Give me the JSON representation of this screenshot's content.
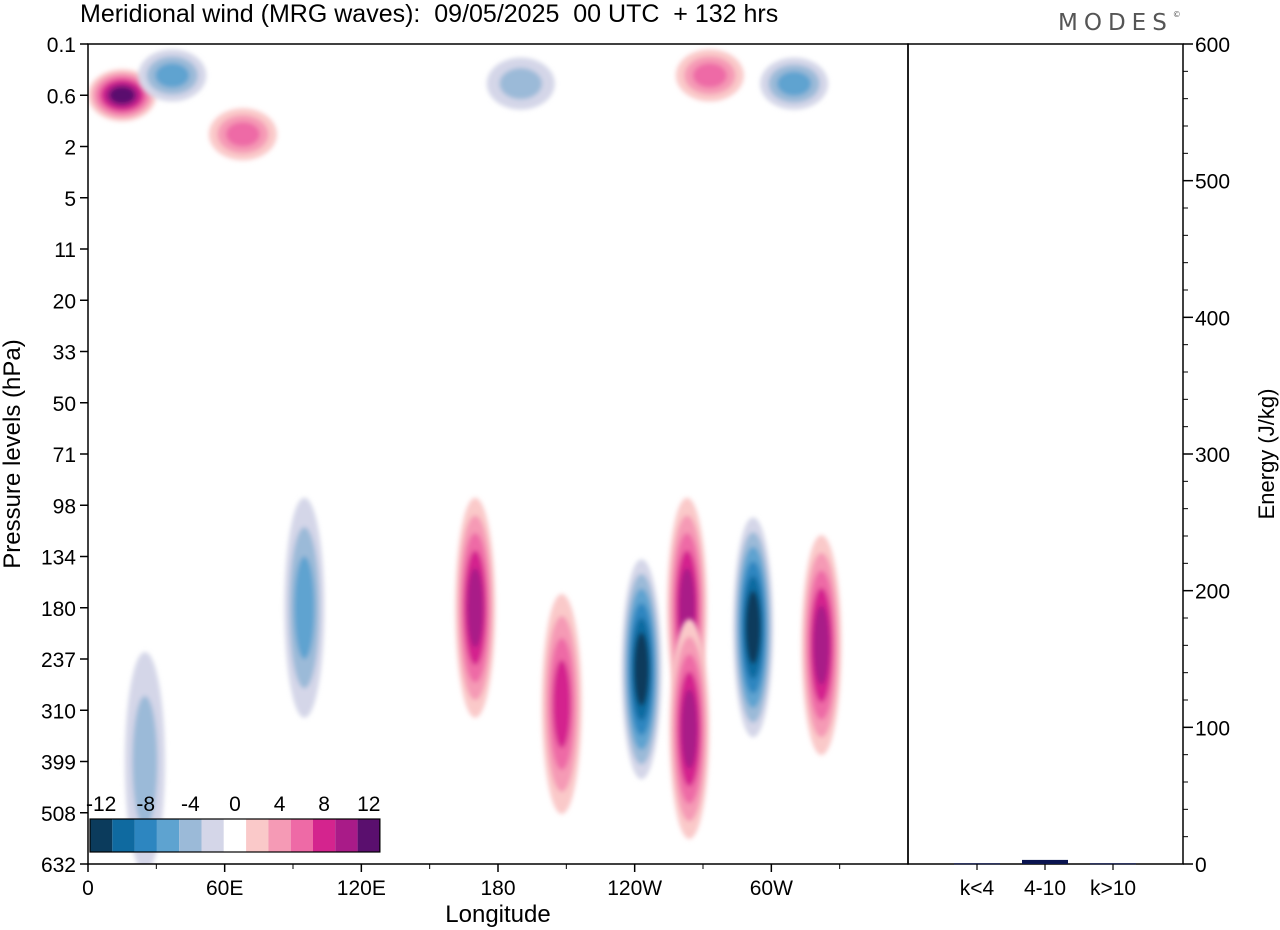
{
  "title": "Meridional wind (MRG waves):  09/05/2025  00 UTC  + 132 hrs",
  "logo": "MODES",
  "chart_data": [
    {
      "type": "heatmap",
      "title": "Meridional wind (MRG waves):  09/05/2025  00 UTC  + 132 hrs",
      "xlabel": "Longitude",
      "ylabel": "Pressure levels (hPa)",
      "x_ticks": [
        "0",
        "60E",
        "120E",
        "180",
        "120W",
        "60W"
      ],
      "x_range": [
        0,
        360
      ],
      "y_ticks": [
        "0.1",
        "0.6",
        "2",
        "5",
        "11",
        "20",
        "33",
        "50",
        "71",
        "98",
        "134",
        "180",
        "237",
        "310",
        "399",
        "508",
        "632"
      ],
      "colorbar": {
        "labels": [
          "-12",
          "-8",
          "-4",
          "0",
          "4",
          "8",
          "12"
        ],
        "levels": [
          -14,
          -12,
          -10,
          -8,
          -6,
          -4,
          -2,
          2,
          4,
          6,
          8,
          10,
          12,
          14
        ],
        "colors": [
          "#0b3b5c",
          "#0f6aa0",
          "#2d86c0",
          "#5ea3d0",
          "#9bbad8",
          "#d4d6e8",
          "#ffffff",
          "#fac9c9",
          "#f59ab5",
          "#ee6aa6",
          "#d4248e",
          "#a91b88",
          "#5a0f6e"
        ],
        "placement": "bottom-left"
      },
      "features": [
        {
          "lon": 15,
          "level": "0.6",
          "value": 13
        },
        {
          "lon": 37,
          "level": "0.3",
          "value": -7
        },
        {
          "lon": 68,
          "level": "1.5",
          "value": 6
        },
        {
          "lon": 190,
          "level": "0.4",
          "value": -5
        },
        {
          "lon": 273,
          "level": "0.3",
          "value": 7
        },
        {
          "lon": 310,
          "level": "0.4",
          "value": -7
        },
        {
          "lon": 170,
          "level": "180",
          "value": 10
        },
        {
          "lon": 208,
          "level": "300",
          "value": 8
        },
        {
          "lon": 243,
          "level": "250",
          "value": -12
        },
        {
          "lon": 263,
          "level": "180",
          "value": 10
        },
        {
          "lon": 264,
          "level": "340",
          "value": 11
        },
        {
          "lon": 292,
          "level": "200",
          "value": -13
        },
        {
          "lon": 322,
          "level": "220",
          "value": 10
        },
        {
          "lon": 95,
          "level": "180",
          "value": -7
        },
        {
          "lon": 25,
          "level": "400",
          "value": -5
        }
      ]
    },
    {
      "type": "bar",
      "categories": [
        "k<4",
        "4-10",
        "k>10"
      ],
      "values": [
        0.5,
        3,
        0.5
      ],
      "ylabel": "Energy (J/kg)",
      "ylim": [
        0,
        600
      ],
      "y_ticks": [
        "0",
        "100",
        "200",
        "300",
        "400",
        "500",
        "600"
      ],
      "bar_color": "#0a1450"
    }
  ]
}
